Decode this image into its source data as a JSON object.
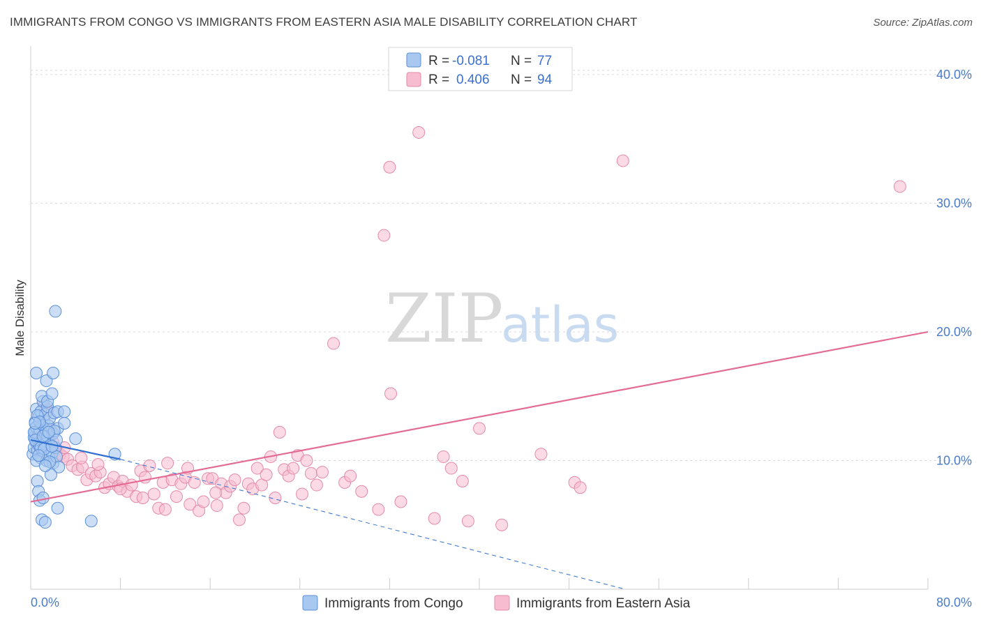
{
  "title": "IMMIGRANTS FROM CONGO VS IMMIGRANTS FROM EASTERN ASIA MALE DISABILITY CORRELATION CHART",
  "source": "Source: ZipAtlas.com",
  "watermark": {
    "zip": "ZIP",
    "atlas": "atlas"
  },
  "colors": {
    "congo_fill": "#a9c8f0",
    "congo_stroke": "#5b8fd8",
    "congo_line": "#2f6fcf",
    "asia_fill": "#f7bcd0",
    "asia_stroke": "#e48aa9",
    "asia_line": "#e46b96",
    "grid": "#d9d9d9",
    "tick_text": "#4a7cc7"
  },
  "legend": {
    "rows": [
      {
        "r_label": "R =",
        "r_value": "-0.081",
        "n_label": "N =",
        "n_value": "77"
      },
      {
        "r_label": "R =",
        "r_value": "0.406",
        "n_label": "N =",
        "n_value": "94"
      }
    ]
  },
  "bottom_legend": [
    "Immigrants from Congo",
    "Immigrants from Eastern Asia"
  ],
  "chart_data": {
    "type": "scatter",
    "title": "IMMIGRANTS FROM CONGO VS IMMIGRANTS FROM EASTERN ASIA MALE DISABILITY CORRELATION CHART",
    "xlabel": "",
    "ylabel": "Male Disability",
    "xlim": [
      0,
      80
    ],
    "ylim": [
      0,
      42
    ],
    "x_tick_labels": [
      "0.0%",
      "80.0%"
    ],
    "y_ticks": [
      10,
      20,
      30,
      40
    ],
    "y_tick_labels": [
      "10.0%",
      "20.0%",
      "30.0%",
      "40.0%"
    ],
    "series": [
      {
        "name": "Immigrants from Congo",
        "R": -0.081,
        "N": 77,
        "trend_solid": {
          "x": [
            0,
            8
          ],
          "y": [
            11.6,
            10.1
          ]
        },
        "trend_dashed": {
          "x": [
            8,
            53
          ],
          "y": [
            10.1,
            0.0
          ]
        },
        "points": [
          [
            0.2,
            10.5
          ],
          [
            0.3,
            11.0
          ],
          [
            0.3,
            11.8
          ],
          [
            0.4,
            12.2
          ],
          [
            0.4,
            13.0
          ],
          [
            0.5,
            11.4
          ],
          [
            0.5,
            12.6
          ],
          [
            0.5,
            14.0
          ],
          [
            0.6,
            10.8
          ],
          [
            0.6,
            11.7
          ],
          [
            0.7,
            12.0
          ],
          [
            0.7,
            13.4
          ],
          [
            0.8,
            11.1
          ],
          [
            0.8,
            12.4
          ],
          [
            0.9,
            13.8
          ],
          [
            0.9,
            10.2
          ],
          [
            1.0,
            12.8
          ],
          [
            1.0,
            11.5
          ],
          [
            1.1,
            14.6
          ],
          [
            1.1,
            10.7
          ],
          [
            1.2,
            13.1
          ],
          [
            1.2,
            12.0
          ],
          [
            1.3,
            11.3
          ],
          [
            1.3,
            13.6
          ],
          [
            1.4,
            10.0
          ],
          [
            1.4,
            12.3
          ],
          [
            1.5,
            14.2
          ],
          [
            1.5,
            11.9
          ],
          [
            1.6,
            10.4
          ],
          [
            1.6,
            12.7
          ],
          [
            1.7,
            13.3
          ],
          [
            1.8,
            11.2
          ],
          [
            1.9,
            10.6
          ],
          [
            2.0,
            12.1
          ],
          [
            2.0,
            9.8
          ],
          [
            2.1,
            13.7
          ],
          [
            2.2,
            11.0
          ],
          [
            2.3,
            10.3
          ],
          [
            2.4,
            12.5
          ],
          [
            2.5,
            9.5
          ],
          [
            0.5,
            16.8
          ],
          [
            1.0,
            15.0
          ],
          [
            1.4,
            16.2
          ],
          [
            1.5,
            14.6
          ],
          [
            1.9,
            15.2
          ],
          [
            2.0,
            16.8
          ],
          [
            2.4,
            13.8
          ],
          [
            0.6,
            8.4
          ],
          [
            0.7,
            7.6
          ],
          [
            0.8,
            6.9
          ],
          [
            1.0,
            5.4
          ],
          [
            1.1,
            7.1
          ],
          [
            1.3,
            5.2
          ],
          [
            1.8,
            8.9
          ],
          [
            2.2,
            21.6
          ],
          [
            2.4,
            6.3
          ],
          [
            3.0,
            13.8
          ],
          [
            3.0,
            12.9
          ],
          [
            4.0,
            11.7
          ],
          [
            5.4,
            5.3
          ],
          [
            7.5,
            10.5
          ],
          [
            0.3,
            12.2
          ],
          [
            0.4,
            11.6
          ],
          [
            0.6,
            13.5
          ],
          [
            0.9,
            11.0
          ],
          [
            1.2,
            10.9
          ],
          [
            1.7,
            9.9
          ],
          [
            2.1,
            12.3
          ],
          [
            2.3,
            11.6
          ],
          [
            0.5,
            10.0
          ],
          [
            0.8,
            13.0
          ],
          [
            1.1,
            11.9
          ],
          [
            1.6,
            12.2
          ],
          [
            0.4,
            12.9
          ],
          [
            0.7,
            10.4
          ],
          [
            1.3,
            9.6
          ],
          [
            1.9,
            11.1
          ]
        ]
      },
      {
        "name": "Immigrants from Eastern Asia",
        "R": 0.406,
        "N": 94,
        "trend_solid": {
          "x": [
            0,
            80
          ],
          "y": [
            6.8,
            20.0
          ]
        },
        "points": [
          [
            1.2,
            14.3
          ],
          [
            1.5,
            13.9
          ],
          [
            1.8,
            12.4
          ],
          [
            2.0,
            11.4
          ],
          [
            2.3,
            10.9
          ],
          [
            2.6,
            10.5
          ],
          [
            2.9,
            10.3
          ],
          [
            3.3,
            10.1
          ],
          [
            3.7,
            9.6
          ],
          [
            4.2,
            9.3
          ],
          [
            4.6,
            9.5
          ],
          [
            5.0,
            8.5
          ],
          [
            5.4,
            9.0
          ],
          [
            5.8,
            8.8
          ],
          [
            6.2,
            9.1
          ],
          [
            6.6,
            7.9
          ],
          [
            7.0,
            8.2
          ],
          [
            7.4,
            8.7
          ],
          [
            7.8,
            8.0
          ],
          [
            8.2,
            8.4
          ],
          [
            8.6,
            7.6
          ],
          [
            9.0,
            8.1
          ],
          [
            9.4,
            7.2
          ],
          [
            9.8,
            9.2
          ],
          [
            10.2,
            8.7
          ],
          [
            10.6,
            9.6
          ],
          [
            11.0,
            7.4
          ],
          [
            11.4,
            6.3
          ],
          [
            11.8,
            8.3
          ],
          [
            12.2,
            9.8
          ],
          [
            12.6,
            8.5
          ],
          [
            13.0,
            7.2
          ],
          [
            13.4,
            8.2
          ],
          [
            13.8,
            8.7
          ],
          [
            14.2,
            6.6
          ],
          [
            14.6,
            8.3
          ],
          [
            15.0,
            6.1
          ],
          [
            15.4,
            6.8
          ],
          [
            15.8,
            8.6
          ],
          [
            16.2,
            8.6
          ],
          [
            16.6,
            6.5
          ],
          [
            17.0,
            8.2
          ],
          [
            17.4,
            7.5
          ],
          [
            17.8,
            8.0
          ],
          [
            18.2,
            8.5
          ],
          [
            18.6,
            5.4
          ],
          [
            19.0,
            6.3
          ],
          [
            19.4,
            8.2
          ],
          [
            19.8,
            7.8
          ],
          [
            20.2,
            9.4
          ],
          [
            20.6,
            8.1
          ],
          [
            21.0,
            8.9
          ],
          [
            21.4,
            10.3
          ],
          [
            21.8,
            7.1
          ],
          [
            22.2,
            12.2
          ],
          [
            22.6,
            9.3
          ],
          [
            23.0,
            8.8
          ],
          [
            23.4,
            9.4
          ],
          [
            23.8,
            10.4
          ],
          [
            24.2,
            7.4
          ],
          [
            24.6,
            10.0
          ],
          [
            25.0,
            9.0
          ],
          [
            25.5,
            8.1
          ],
          [
            26.0,
            9.1
          ],
          [
            28.0,
            8.3
          ],
          [
            28.5,
            8.8
          ],
          [
            29.5,
            7.6
          ],
          [
            31.0,
            6.2
          ],
          [
            33.0,
            6.8
          ],
          [
            36.0,
            5.5
          ],
          [
            36.8,
            10.3
          ],
          [
            37.5,
            9.4
          ],
          [
            38.5,
            8.4
          ],
          [
            39.0,
            5.3
          ],
          [
            40.0,
            12.5
          ],
          [
            42.0,
            5.0
          ],
          [
            45.5,
            10.5
          ],
          [
            48.5,
            8.3
          ],
          [
            49.0,
            7.9
          ],
          [
            32.0,
            32.8
          ],
          [
            34.6,
            35.5
          ],
          [
            31.5,
            27.5
          ],
          [
            27.0,
            19.1
          ],
          [
            32.1,
            15.2
          ],
          [
            52.8,
            33.3
          ],
          [
            77.5,
            31.3
          ],
          [
            3.0,
            11.0
          ],
          [
            4.5,
            10.2
          ],
          [
            6.0,
            9.7
          ],
          [
            8.0,
            7.8
          ],
          [
            10.0,
            7.1
          ],
          [
            12.0,
            6.2
          ],
          [
            14.0,
            9.4
          ],
          [
            16.5,
            7.5
          ]
        ]
      }
    ]
  }
}
